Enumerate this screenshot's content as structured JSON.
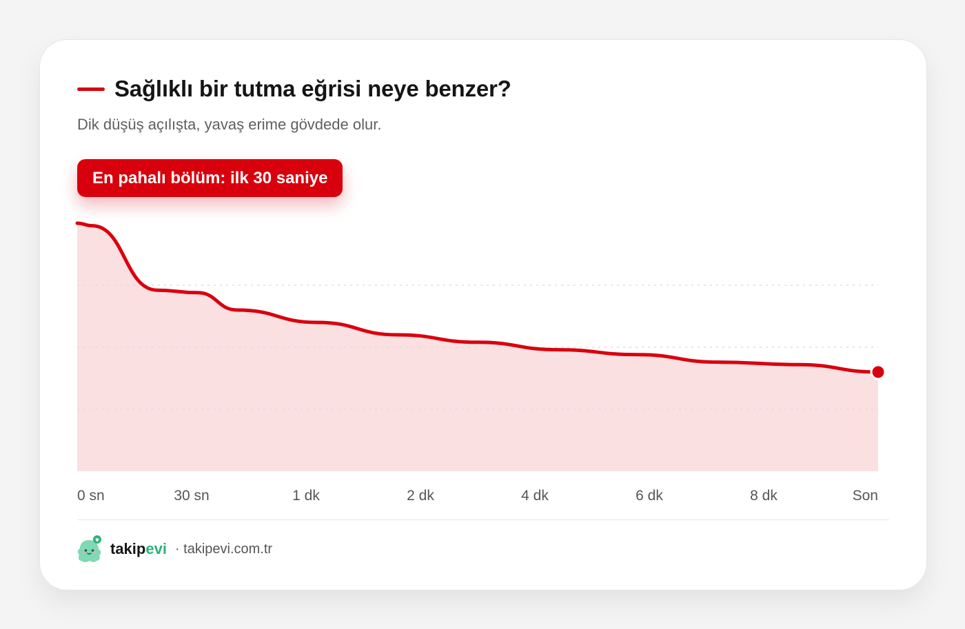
{
  "colors": {
    "accent": "#d9000d",
    "fill": "#fbe0e1",
    "grid": "#dedede",
    "axis_text": "#555555",
    "brand_green": "#2bb37b"
  },
  "header": {
    "title": "Sağlıklı bir tutma eğrisi neye benzer?",
    "subtitle": "Dik düşüş açılışta, yavaş erime gövdede olur."
  },
  "badge": {
    "label": "En pahalı bölüm: ilk 30 saniye"
  },
  "chart_data": {
    "type": "area",
    "categories": [
      "0 sn",
      "30 sn",
      "1 dk",
      "2 dk",
      "4 dk",
      "6 dk",
      "8 dk",
      "Son"
    ],
    "x": [
      0,
      0.7,
      1.4,
      2.1,
      2.8,
      3.5,
      4.2,
      4.9,
      5.6,
      6.3,
      7.0
    ],
    "values": [
      100,
      73,
      65,
      59,
      53,
      48,
      44,
      40
    ],
    "series": [
      {
        "x": [
          0,
          0.13,
          0.7,
          1.05,
          1.4,
          2.1,
          2.8,
          3.5,
          4.2,
          4.9,
          5.6,
          6.3,
          7.0
        ],
        "values": [
          100,
          99,
          73,
          72,
          65,
          60,
          55,
          52,
          49,
          47,
          44,
          43,
          40
        ]
      }
    ],
    "ylim": [
      0,
      100
    ],
    "grid": true,
    "end_marker": true
  },
  "footer": {
    "brand_part1": "takip",
    "brand_part2": "evi",
    "site": "· takipevi.com.tr",
    "logo_icon": "ghost-mascot-icon"
  }
}
